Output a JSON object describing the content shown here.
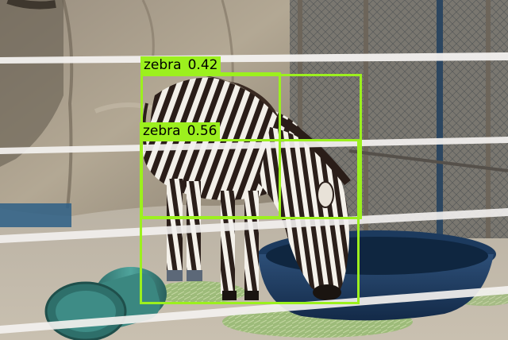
{
  "detections": [
    {
      "label": "zebra",
      "score": "0.42",
      "color": "#9cf01e"
    },
    {
      "label": "zebra",
      "score": "0.56",
      "color": "#9cf01e"
    }
  ],
  "scene_objects": [
    "rock-wall",
    "chain-link-fence",
    "zebra",
    "water-tub",
    "hay",
    "barrel",
    "white-fence-rails"
  ]
}
